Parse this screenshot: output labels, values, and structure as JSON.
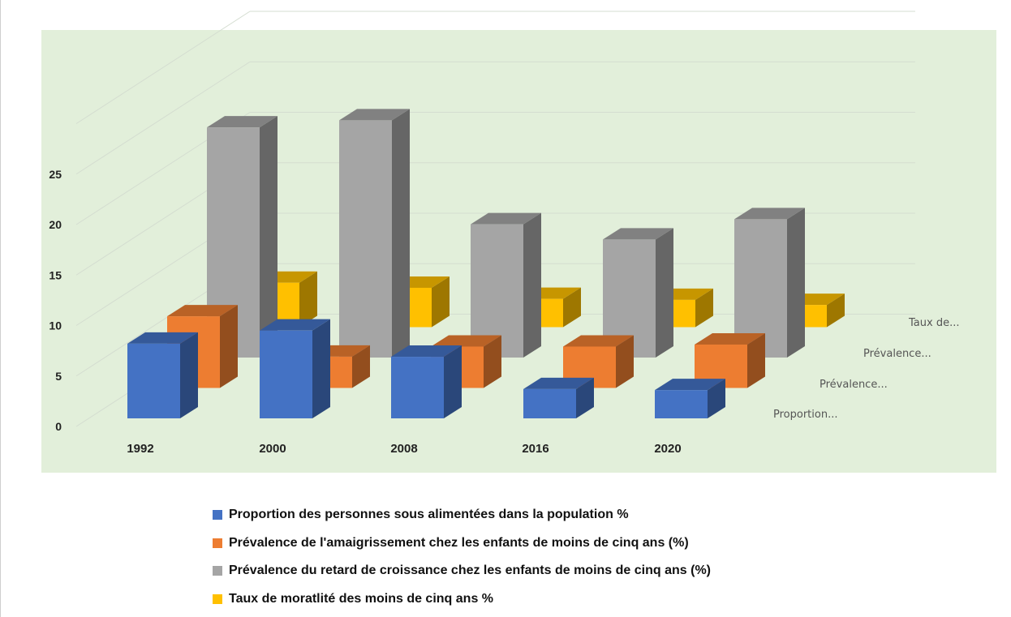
{
  "chart_data": {
    "type": "bar",
    "categories": [
      "1992",
      "2000",
      "2008",
      "2016",
      "2020"
    ],
    "series": [
      {
        "name": "Proportion des personnes sous alimentées dans la population %",
        "short_label": "Proportion...",
        "color": "#4472C4",
        "values": [
          7.4,
          8.7,
          6.1,
          2.9,
          2.8
        ]
      },
      {
        "name": "Prévalence de l'amaigrissement chez les enfants de moins de cinq ans (%)",
        "short_label": "Prévalence...",
        "color": "#ED7D31",
        "values": [
          7.1,
          3.1,
          4.1,
          4.1,
          4.3
        ]
      },
      {
        "name": "Prévalence du retard de croissance chez les enfants de moins de cinq ans (%)",
        "short_label": "Prévalence...",
        "color": "#A5A5A5",
        "values": [
          22.8,
          23.5,
          13.2,
          11.7,
          13.7
        ]
      },
      {
        "name": "Taux de moratlité des moins de cinq ans %",
        "short_label": "Taux de...",
        "color": "#FFC000",
        "values": [
          4.4,
          3.9,
          2.8,
          2.7,
          2.2
        ]
      }
    ],
    "ylim": [
      0,
      30
    ],
    "yticks": [
      "0",
      "5",
      "10",
      "15",
      "20",
      "25"
    ],
    "grid": true,
    "legend_position": "bottom",
    "background": "#E2EFDA"
  }
}
